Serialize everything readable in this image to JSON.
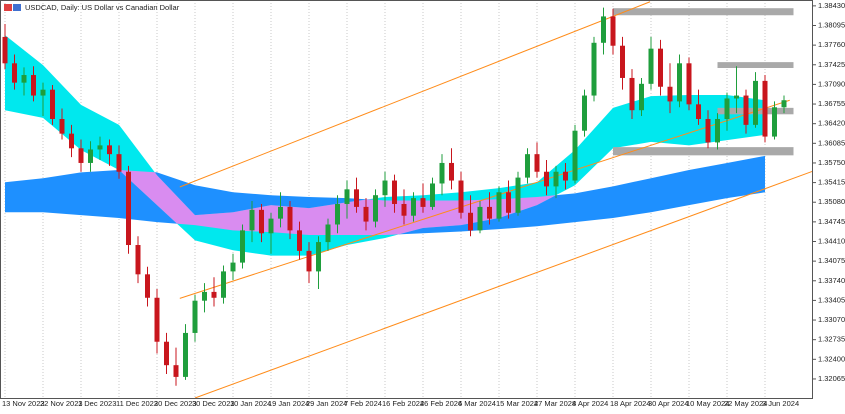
{
  "chart_data": {
    "type": "candlestick",
    "title": "USDCAD, Daily:  US Dollar vs Canadian Dollar",
    "bull_color": "#1f9e3c",
    "bear_color": "#c8161d",
    "grid": "x",
    "ylim": [
      1.3174,
      1.3853
    ],
    "yticks": [
      {
        "value": 1.3843,
        "label": "1.38430"
      },
      1.38095,
      {
        "value": 1.3776,
        "label": "1.37760"
      },
      1.37425,
      {
        "value": 1.3709,
        "label": "1.37090"
      },
      1.36755,
      {
        "value": 1.3642,
        "label": "1.36420"
      },
      1.36085,
      {
        "value": 1.3575,
        "label": "1.35750"
      },
      1.35415,
      {
        "value": 1.3508,
        "label": "1.35080"
      },
      1.34745,
      {
        "value": 1.3441,
        "label": "1.34410"
      },
      1.34075,
      {
        "value": 1.3374,
        "label": "1.33740"
      },
      1.33405,
      {
        "value": 1.3307,
        "label": "1.33070"
      },
      1.32735,
      {
        "value": 1.324,
        "label": "1.32400"
      },
      1.32065
    ],
    "categories": [
      "13 Nov 2023",
      null,
      null,
      null,
      "22 Nov 2023",
      null,
      null,
      null,
      "1 Dec 2023",
      null,
      null,
      null,
      "11 Dec 2023",
      null,
      null,
      null,
      "20 Dec 2023",
      null,
      null,
      null,
      "30 Dec 2023",
      null,
      null,
      null,
      "10 Jan 2024",
      null,
      null,
      null,
      "19 Jan 2024",
      null,
      null,
      null,
      "29 Jan 2024",
      null,
      null,
      null,
      "7 Feb 2024",
      null,
      null,
      null,
      "16 Feb 2024",
      null,
      null,
      null,
      "26 Feb 2024",
      null,
      null,
      null,
      "6 Mar 2024",
      null,
      null,
      null,
      "15 Mar 2024",
      null,
      null,
      null,
      "27 Mar 2024",
      null,
      null,
      null,
      "8 Apr 2024",
      null,
      null,
      null,
      "18 Apr 2024",
      null,
      null,
      null,
      "30 Apr 2024",
      null,
      null,
      null,
      "10 May 2024",
      null,
      null,
      null,
      "22 May 2024",
      null,
      null,
      null,
      "3 Jun 2024",
      null,
      null
    ],
    "ohlc": [
      [
        1.379,
        1.3812,
        1.3735,
        1.3745
      ],
      [
        1.3745,
        1.376,
        1.37,
        1.3712
      ],
      [
        1.3712,
        1.3738,
        1.369,
        1.3725
      ],
      [
        1.3725,
        1.374,
        1.368,
        1.369
      ],
      [
        1.369,
        1.3712,
        1.3655,
        1.37
      ],
      [
        1.37,
        1.3708,
        1.364,
        1.365
      ],
      [
        1.365,
        1.3668,
        1.3615,
        1.3625
      ],
      [
        1.3625,
        1.364,
        1.3585,
        1.36
      ],
      [
        1.36,
        1.3615,
        1.356,
        1.3575
      ],
      [
        1.3575,
        1.3612,
        1.356,
        1.3598
      ],
      [
        1.3598,
        1.362,
        1.358,
        1.3605
      ],
      [
        1.3605,
        1.3615,
        1.357,
        1.359
      ],
      [
        1.359,
        1.3605,
        1.3548,
        1.356
      ],
      [
        1.356,
        1.357,
        1.342,
        1.3435
      ],
      [
        1.3435,
        1.345,
        1.337,
        1.3385
      ],
      [
        1.3385,
        1.3398,
        1.333,
        1.3345
      ],
      [
        1.3345,
        1.336,
        1.325,
        1.327
      ],
      [
        1.327,
        1.3285,
        1.3215,
        1.323
      ],
      [
        1.323,
        1.326,
        1.3195,
        1.321
      ],
      [
        1.321,
        1.33,
        1.3205,
        1.3285
      ],
      [
        1.3285,
        1.335,
        1.327,
        1.334
      ],
      [
        1.334,
        1.337,
        1.332,
        1.3355
      ],
      [
        1.3355,
        1.338,
        1.333,
        1.3345
      ],
      [
        1.3345,
        1.34,
        1.3335,
        1.339
      ],
      [
        1.339,
        1.342,
        1.3375,
        1.3405
      ],
      [
        1.3405,
        1.347,
        1.3395,
        1.346
      ],
      [
        1.346,
        1.351,
        1.344,
        1.3495
      ],
      [
        1.3495,
        1.3505,
        1.344,
        1.3455
      ],
      [
        1.3455,
        1.349,
        1.342,
        1.348
      ],
      [
        1.348,
        1.3525,
        1.3465,
        1.35
      ],
      [
        1.35,
        1.351,
        1.3445,
        1.346
      ],
      [
        1.346,
        1.3475,
        1.341,
        1.3425
      ],
      [
        1.3425,
        1.344,
        1.337,
        1.339
      ],
      [
        1.339,
        1.345,
        1.336,
        1.344
      ],
      [
        1.344,
        1.348,
        1.3425,
        1.347
      ],
      [
        1.347,
        1.352,
        1.3455,
        1.3505
      ],
      [
        1.3505,
        1.3545,
        1.348,
        1.353
      ],
      [
        1.353,
        1.355,
        1.349,
        1.35
      ],
      [
        1.35,
        1.3515,
        1.346,
        1.3475
      ],
      [
        1.3475,
        1.353,
        1.3465,
        1.352
      ],
      [
        1.352,
        1.356,
        1.35,
        1.3545
      ],
      [
        1.3545,
        1.3555,
        1.349,
        1.3505
      ],
      [
        1.3505,
        1.353,
        1.347,
        1.3485
      ],
      [
        1.3485,
        1.3525,
        1.3475,
        1.3515
      ],
      [
        1.3515,
        1.354,
        1.349,
        1.35
      ],
      [
        1.35,
        1.355,
        1.3495,
        1.354
      ],
      [
        1.354,
        1.359,
        1.352,
        1.3575
      ],
      [
        1.3575,
        1.36,
        1.353,
        1.3545
      ],
      [
        1.3545,
        1.356,
        1.348,
        1.349
      ],
      [
        1.349,
        1.352,
        1.345,
        1.346
      ],
      [
        1.346,
        1.351,
        1.3455,
        1.35
      ],
      [
        1.35,
        1.3525,
        1.347,
        1.348
      ],
      [
        1.348,
        1.3535,
        1.3475,
        1.3525
      ],
      [
        1.3525,
        1.3545,
        1.348,
        1.349
      ],
      [
        1.349,
        1.356,
        1.3485,
        1.355
      ],
      [
        1.355,
        1.36,
        1.354,
        1.359
      ],
      [
        1.359,
        1.361,
        1.355,
        1.356
      ],
      [
        1.356,
        1.358,
        1.352,
        1.3535
      ],
      [
        1.3535,
        1.357,
        1.3515,
        1.356
      ],
      [
        1.356,
        1.3575,
        1.353,
        1.3545
      ],
      [
        1.3545,
        1.364,
        1.354,
        1.363
      ],
      [
        1.363,
        1.37,
        1.362,
        1.369
      ],
      [
        1.369,
        1.379,
        1.368,
        1.378
      ],
      [
        1.378,
        1.384,
        1.376,
        1.3825
      ],
      [
        1.3825,
        1.3838,
        1.376,
        1.3775
      ],
      [
        1.3775,
        1.379,
        1.37,
        1.372
      ],
      [
        1.372,
        1.3735,
        1.365,
        1.3665
      ],
      [
        1.3665,
        1.372,
        1.3655,
        1.371
      ],
      [
        1.371,
        1.379,
        1.37,
        1.377
      ],
      [
        1.377,
        1.3785,
        1.369,
        1.3705
      ],
      [
        1.3705,
        1.3745,
        1.366,
        1.368
      ],
      [
        1.368,
        1.376,
        1.367,
        1.3745
      ],
      [
        1.3745,
        1.3755,
        1.3665,
        1.3675
      ],
      [
        1.3675,
        1.37,
        1.364,
        1.365
      ],
      [
        1.365,
        1.3665,
        1.36,
        1.361
      ],
      [
        1.361,
        1.366,
        1.3598,
        1.365
      ],
      [
        1.365,
        1.3695,
        1.363,
        1.3685
      ],
      [
        1.3685,
        1.374,
        1.366,
        1.369
      ],
      [
        1.369,
        1.37,
        1.3625,
        1.364
      ],
      [
        1.364,
        1.373,
        1.3635,
        1.3715
      ],
      [
        1.3715,
        1.3725,
        1.361,
        1.362
      ],
      [
        1.362,
        1.368,
        1.3615,
        1.367
      ],
      [
        1.367,
        1.369,
        1.366,
        1.3682
      ]
    ],
    "bands": [
      {
        "color": "#1e90ff",
        "upper": [
          1.3542,
          1.3549,
          1.3559,
          1.3563,
          1.3559,
          1.3537,
          1.3525,
          1.352,
          1.3517,
          1.3515,
          1.3511,
          1.3511,
          1.3511,
          1.3513,
          1.3517,
          1.3523,
          1.3535,
          1.3549,
          1.3563,
          1.3575,
          1.3587
        ],
        "lower": [
          1.3491,
          1.3491,
          1.3486,
          1.3481,
          1.3474,
          1.3469,
          1.346,
          1.3457,
          1.3452,
          1.3452,
          1.3452,
          1.3455,
          1.3458,
          1.3462,
          1.3467,
          1.3474,
          1.3481,
          1.3491,
          1.3503,
          1.3515,
          1.3525
        ]
      },
      {
        "color": "#00e8ee",
        "overlap_color": "#d98cf0",
        "upper": [
          1.3793,
          1.3742,
          1.3674,
          1.364,
          1.3554,
          1.3486,
          1.3491,
          1.3503,
          1.3498,
          1.3508,
          1.3517,
          1.352,
          1.3525,
          1.3532,
          1.3542,
          1.3597,
          1.3669,
          1.3689,
          1.3691,
          1.3691,
          1.3682
        ],
        "lower": [
          1.3665,
          1.3652,
          1.3597,
          1.3563,
          1.3503,
          1.3443,
          1.3426,
          1.3417,
          1.3417,
          1.3435,
          1.3447,
          1.3464,
          1.3469,
          1.3481,
          1.3503,
          1.3537,
          1.36,
          1.3611,
          1.3605,
          1.3614,
          1.3623
        ]
      }
    ],
    "lines": [
      {
        "color": "#ff8c1a",
        "x": [
          18.4,
          67.9
        ],
        "values": [
          1.3534,
          1.385
        ]
      },
      {
        "color": "#ff8c1a",
        "x": [
          18.4,
          82.6
        ],
        "values": [
          1.3344,
          1.3682
        ]
      },
      {
        "color": "#ff8c1a",
        "x": [
          20,
          88.4
        ],
        "values": [
          1.3174,
          1.3581
        ]
      }
    ],
    "zones": [
      {
        "color": "#a9a9a9",
        "x": [
          64,
          83
        ],
        "range": [
          1.3827,
          1.3839
        ]
      },
      {
        "color": "#a9a9a9",
        "x": [
          75,
          83
        ],
        "range": [
          1.3737,
          1.3747
        ]
      },
      {
        "color": "#a9a9a9",
        "x": [
          75,
          83
        ],
        "range": [
          1.3658,
          1.3669
        ]
      },
      {
        "color": "#a9a9a9",
        "x": [
          64,
          83
        ],
        "range": [
          1.3588,
          1.3602
        ]
      }
    ]
  }
}
